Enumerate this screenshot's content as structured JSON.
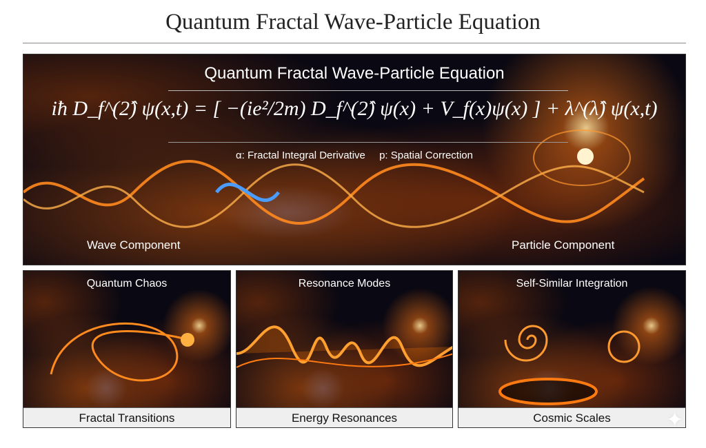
{
  "page_title": "Quantum Fractal Wave-Particle Equation",
  "main_panel": {
    "heading": "Quantum Fractal Wave-Particle Equation",
    "equation": "iħ D_f^(2̂) ψ(x,t) = [ −(ie²/2m) D_f^(2̂) ψ(x) + V_f(x)ψ(x) ] + λ^(λ̂) ψ(x,t)",
    "legend": [
      "α: Fractal Integral Derivative",
      "p: Spatial Correction"
    ],
    "left_label": "Wave Component",
    "right_label": "Particle Component"
  },
  "panels": [
    {
      "heading": "Quantum Chaos",
      "caption": "Fractal Transitions"
    },
    {
      "heading": "Resonance Modes",
      "caption": "Energy Resonances"
    },
    {
      "heading": "Self-Similar Integration",
      "caption": "Cosmic Scales"
    }
  ],
  "colors": {
    "accent": "#ff8a1e",
    "glow": "#ffd27a",
    "blue": "#4a9cff",
    "background": "#0a0812"
  },
  "icons": {
    "corner": "sparkle-icon"
  }
}
